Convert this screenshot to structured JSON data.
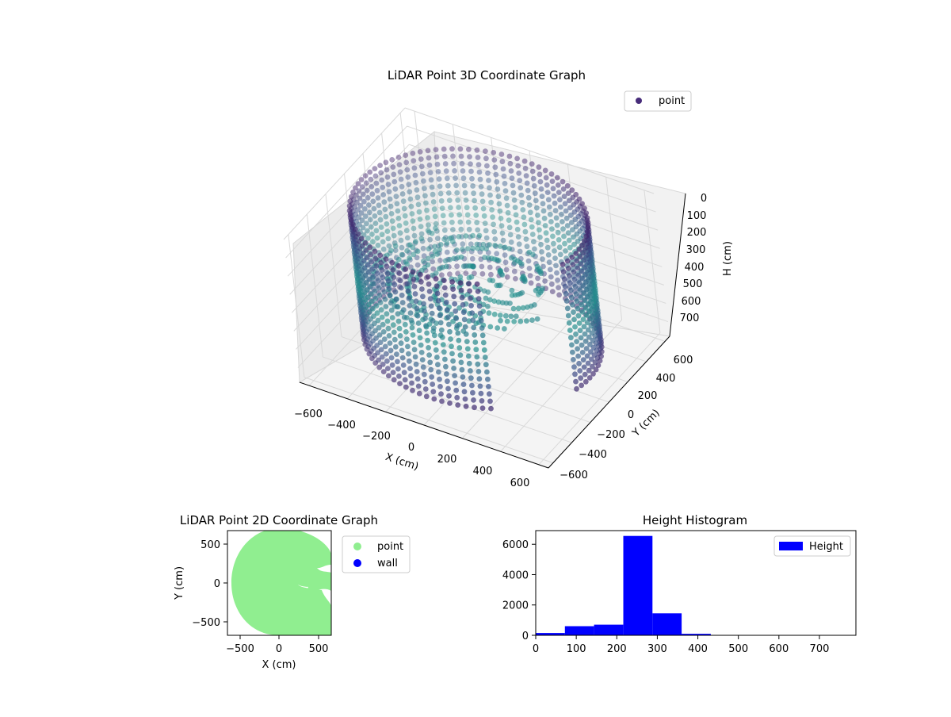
{
  "figure": {
    "chart3d_title": "LiDAR Point 3D Coordinate Graph",
    "chart2d_title": "LiDAR Point 2D Coordinate Graph",
    "hist_title": "Height Histogram"
  },
  "colors": {
    "teal": "#2aa38a",
    "purple": "#472c7a",
    "deep_purple": "#3b0f55",
    "light_green": "#90ee90",
    "blue": "#0000ff"
  },
  "chart_data": [
    {
      "type": "scatter",
      "title": "LiDAR Point 3D Coordinate Graph",
      "xlabel": "X (cm)",
      "ylabel": "Y (cm)",
      "zlabel": "H (cm)",
      "x_ticks": [
        "−600",
        "−400",
        "−200",
        "0",
        "200",
        "400",
        "600"
      ],
      "y_ticks": [
        "−600",
        "−400",
        "−200",
        "0",
        "200",
        "400",
        "600"
      ],
      "z_ticks": [
        "0",
        "100",
        "200",
        "300",
        "400",
        "500",
        "600",
        "700"
      ],
      "xlim": [
        -650,
        650
      ],
      "ylim": [
        -650,
        650
      ],
      "zlim": [
        0,
        780
      ],
      "z_inverted": true,
      "colormap": "viridis",
      "legend": [
        "point"
      ],
      "legend_position": "upper-right",
      "grid": true,
      "wall_radius": 560,
      "wall_height_range": [
        0,
        700
      ]
    },
    {
      "type": "scatter",
      "title": "LiDAR Point 2D Coordinate Graph",
      "xlabel": "X (cm)",
      "ylabel": "Y (cm)",
      "x_ticks": [
        "−500",
        "0",
        "500"
      ],
      "y_ticks": [
        "500",
        "0",
        "−500"
      ],
      "xlim": [
        -650,
        650
      ],
      "ylim": [
        -650,
        650
      ],
      "series": [
        {
          "name": "point",
          "color": "#90ee90"
        },
        {
          "name": "wall",
          "color": "#0000ff"
        }
      ],
      "legend_position": "outside-right"
    },
    {
      "type": "bar",
      "title": "Height Histogram",
      "x_ticks": [
        "0",
        "100",
        "200",
        "300",
        "400",
        "500",
        "600",
        "700"
      ],
      "y_ticks": [
        "0",
        "2000",
        "4000",
        "6000"
      ],
      "xlim": [
        0,
        790
      ],
      "ylim": [
        0,
        6900
      ],
      "bin_edges": [
        0,
        72,
        144,
        216,
        288,
        360,
        432,
        504,
        576,
        648,
        720
      ],
      "values": [
        150,
        600,
        700,
        6550,
        1450,
        100,
        10,
        5,
        5,
        5
      ],
      "series": [
        {
          "name": "Height",
          "color": "#0000ff"
        }
      ],
      "legend_position": "upper-right"
    }
  ]
}
